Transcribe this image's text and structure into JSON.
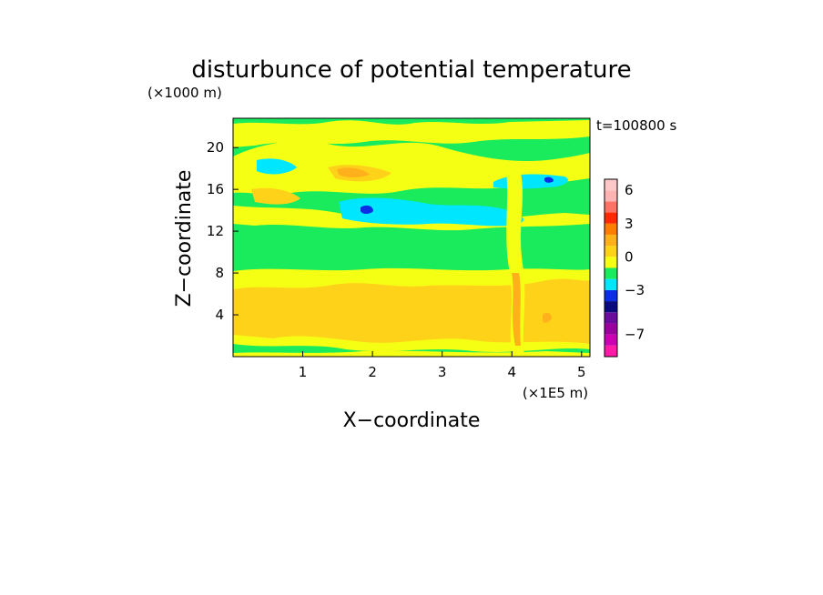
{
  "chart_data": {
    "type": "heatmap",
    "title": "disturbunce of potential temperature",
    "time_label": "t=100800 s",
    "xlabel": "X−coordinate",
    "ylabel": "Z−coordinate",
    "x_unit": "(×1E5 m)",
    "y_unit": "(×1000 m)",
    "x_ticks": [
      {
        "value": 1,
        "label": "1"
      },
      {
        "value": 2,
        "label": "2"
      },
      {
        "value": 3,
        "label": "3"
      },
      {
        "value": 4,
        "label": "4"
      },
      {
        "value": 5,
        "label": "5"
      }
    ],
    "y_ticks": [
      {
        "value": 4,
        "label": "4"
      },
      {
        "value": 8,
        "label": "8"
      },
      {
        "value": 12,
        "label": "12"
      },
      {
        "value": 16,
        "label": "16"
      },
      {
        "value": 20,
        "label": "20"
      }
    ],
    "xlim": [
      0,
      5.12
    ],
    "ylim": [
      0,
      22.8
    ],
    "colorbar": {
      "levels": [
        -9,
        -8,
        -7,
        -6,
        -5,
        -4,
        -3,
        -2,
        -1,
        0,
        1,
        2,
        3,
        4,
        5,
        6,
        7
      ],
      "colors": [
        "#ff1aa8",
        "#cc00b3",
        "#99009e",
        "#6a0d9e",
        "#0a0a80",
        "#0a2ee6",
        "#00e6ff",
        "#1aeb5c",
        "#f5ff14",
        "#ffd21a",
        "#ffb01a",
        "#ff7d00",
        "#ff2a00",
        "#ff7366",
        "#ffb3b3",
        "#ffc8c8"
      ],
      "tick_labels": [
        {
          "value": 6,
          "label": "6"
        },
        {
          "value": 3,
          "label": "3"
        },
        {
          "value": 0,
          "label": "0"
        },
        {
          "value": -3,
          "label": "−3"
        },
        {
          "value": -7,
          "label": "−7"
        }
      ]
    },
    "regions": [
      {
        "level": "green",
        "z_range": [
          7.5,
          22.8
        ],
        "x_range": [
          0,
          5.12
        ],
        "note": "base -1 to 0"
      },
      {
        "level": "yellow",
        "z_range": [
          0,
          7.5
        ],
        "x_range": [
          0,
          5.12
        ],
        "note": "0 to 1"
      },
      {
        "level": "orange",
        "z_range": [
          1,
          6.5
        ],
        "x_range": [
          0.3,
          5.12
        ],
        "note": "1 to 2"
      },
      {
        "level": "cyan",
        "z_range": [
          13.2,
          15.5
        ],
        "x_range": [
          1.5,
          4.1
        ],
        "note": "-2 to -1"
      },
      {
        "level": "blue",
        "z_range": [
          13.8,
          14.5
        ],
        "x_range": [
          1.8,
          2.0
        ],
        "note": "-3 to -2"
      },
      {
        "level": "orange",
        "z_range": [
          16.5,
          18.2
        ],
        "x_range": [
          1.4,
          2.4
        ],
        "note": "1 to 2"
      }
    ]
  }
}
